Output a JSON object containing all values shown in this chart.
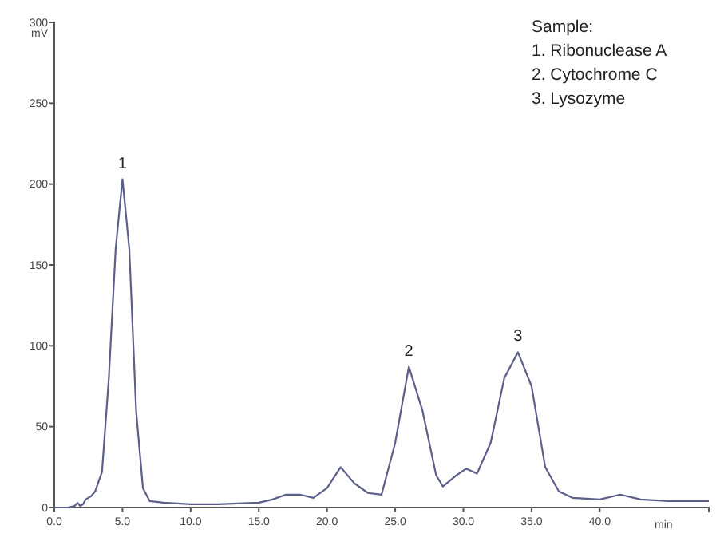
{
  "chart_data": {
    "type": "line",
    "xlabel": "min",
    "ylabel": "mV",
    "x": [
      0,
      1,
      1.5,
      1.7,
      1.9,
      2.1,
      2.3,
      2.7,
      3,
      3.5,
      4,
      4.5,
      5,
      5.5,
      6,
      6.5,
      7,
      8,
      10,
      12,
      15,
      16,
      17,
      18,
      19,
      20,
      21,
      22,
      23,
      24,
      25,
      26,
      27,
      28,
      28.5,
      29.5,
      30.2,
      31,
      32,
      33,
      34,
      35,
      36,
      37,
      38,
      40,
      41.5,
      43,
      45,
      48
    ],
    "series": [
      {
        "color": "#5b5f8a",
        "values": [
          0,
          0,
          1,
          3,
          1,
          2,
          5,
          7,
          10,
          22,
          80,
          160,
          203,
          160,
          60,
          12,
          4,
          3,
          2,
          2,
          3,
          5,
          8,
          8,
          6,
          12,
          25,
          15,
          9,
          8,
          40,
          87,
          60,
          20,
          13,
          20,
          24,
          21,
          40,
          80,
          96,
          75,
          25,
          10,
          6,
          5,
          8,
          5,
          4,
          4
        ]
      }
    ],
    "xlim": [
      0,
      48
    ],
    "ylim": [
      0,
      300
    ],
    "xticks": [
      {
        "value": 0,
        "label": "0.0"
      },
      {
        "value": 5,
        "label": "5.0"
      },
      {
        "value": 10,
        "label": "10.0"
      },
      {
        "value": 15,
        "label": "15.0"
      },
      {
        "value": 20,
        "label": "20.0"
      },
      {
        "value": 25,
        "label": "25.0"
      },
      {
        "value": 30,
        "label": "30.0"
      },
      {
        "value": 35,
        "label": "35.0"
      },
      {
        "value": 40,
        "label": "40.0"
      }
    ],
    "yticks": [
      0,
      50,
      100,
      150,
      200,
      250,
      300
    ],
    "grid": false,
    "marker": "none",
    "line_style": "solid",
    "annotations": [
      {
        "text": "1",
        "x": 5,
        "y": 203
      },
      {
        "text": "2",
        "x": 26,
        "y": 87
      },
      {
        "text": "3",
        "x": 34,
        "y": 96
      },
      "Sample:",
      "1. Ribonuclease A",
      "2. Cytochrome C",
      "3. Lysozyme"
    ]
  }
}
